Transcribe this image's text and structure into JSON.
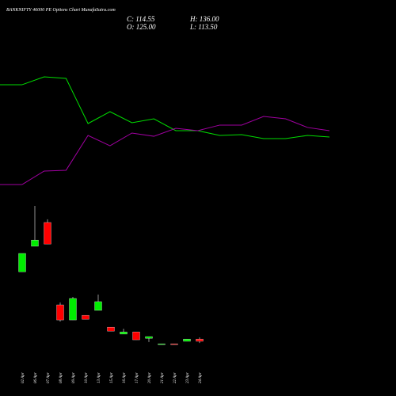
{
  "chart_data": {
    "type": "candlestick",
    "title": "BANKNIFTY 46000  PE Options  Chart MunafaSutra.com",
    "header": {
      "close": "C: 114.55",
      "high": "H: 136.00",
      "open": "O: 125.00",
      "low": "L: 113.50"
    },
    "categories": [
      "02 Apr",
      "06 Apr",
      "07 Apr",
      "08 Apr",
      "09 Apr",
      "10 Apr",
      "13 Apr",
      "15 Apr",
      "16 Apr",
      "17 Apr",
      "20 Apr",
      "21 Apr",
      "22 Apr",
      "23 Apr",
      "24 Apr"
    ],
    "open": [
      410,
      513,
      609,
      276,
      215,
      234,
      254,
      186,
      158,
      167,
      141,
      116,
      119,
      129,
      138
    ],
    "close": [
      484,
      538,
      522,
      215,
      302,
      218,
      289,
      170,
      167,
      135,
      148,
      119,
      116,
      138,
      129
    ],
    "high": [
      484,
      676,
      622,
      286,
      308,
      234,
      318,
      186,
      180,
      167,
      148,
      119,
      119,
      138,
      145
    ],
    "low": [
      410,
      513,
      522,
      209,
      215,
      218,
      254,
      170,
      158,
      135,
      126,
      116,
      116,
      129,
      122
    ],
    "up_color": "#00ee00",
    "down_color": "#ff0000",
    "ylim": [
      100,
      708
    ],
    "series": [
      {
        "color": "#00dd00",
        "axis": "y2",
        "values": [
          88.7,
          95.3,
          94,
          56,
          66,
          56.7,
          60,
          50,
          50,
          46,
          46.7,
          43.3,
          43.3,
          46,
          44.7
        ]
      },
      {
        "color": "#a000a0",
        "axis": "y2",
        "values": [
          4.7,
          16,
          16.7,
          46,
          37.3,
          48,
          45.3,
          52,
          50,
          54.7,
          54.7,
          62,
          60,
          52.7,
          50
        ]
      }
    ],
    "y2lim": [
      0,
      100
    ]
  }
}
